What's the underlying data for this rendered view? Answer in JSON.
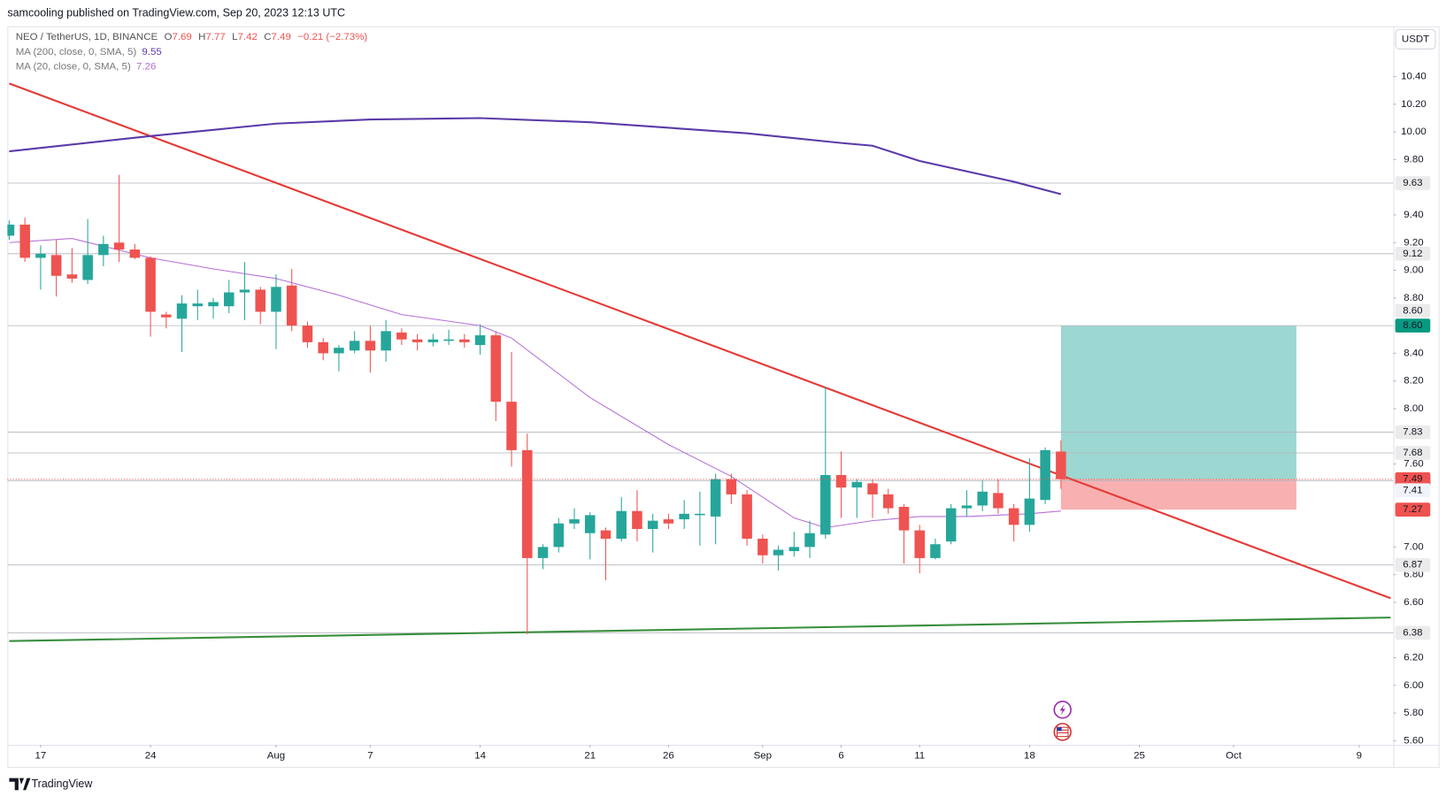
{
  "header": {
    "published": "samcooling published on TradingView.com, Sep 20, 2023 12:13 UTC"
  },
  "legend": {
    "symbol": "NEO / TetherUS, 1D, BINANCE",
    "o": "O",
    "o_value": "7.69",
    "h": "H",
    "h_value": "7.77",
    "l": "L",
    "l_value": "7.42",
    "c": "C",
    "c_value": "7.49",
    "change": "−0.21 (−2.73%)"
  },
  "currency_button": "USDT",
  "footer": "TradingView",
  "chart_data": {
    "type": "candlestick",
    "up_color": "#26a69a",
    "down_color": "#ef5350",
    "grid": false,
    "x": [
      "2023-07-15",
      "2023-07-16",
      "2023-07-17",
      "2023-07-18",
      "2023-07-19",
      "2023-07-20",
      "2023-07-21",
      "2023-07-22",
      "2023-07-23",
      "2023-07-24",
      "2023-07-25",
      "2023-07-26",
      "2023-07-27",
      "2023-07-28",
      "2023-07-29",
      "2023-07-30",
      "2023-07-31",
      "2023-08-01",
      "2023-08-02",
      "2023-08-03",
      "2023-08-04",
      "2023-08-05",
      "2023-08-06",
      "2023-08-07",
      "2023-08-08",
      "2023-08-09",
      "2023-08-10",
      "2023-08-11",
      "2023-08-12",
      "2023-08-13",
      "2023-08-14",
      "2023-08-15",
      "2023-08-16",
      "2023-08-17",
      "2023-08-18",
      "2023-08-19",
      "2023-08-20",
      "2023-08-21",
      "2023-08-22",
      "2023-08-23",
      "2023-08-24",
      "2023-08-25",
      "2023-08-26",
      "2023-08-27",
      "2023-08-28",
      "2023-08-29",
      "2023-08-30",
      "2023-08-31",
      "2023-09-01",
      "2023-09-02",
      "2023-09-03",
      "2023-09-04",
      "2023-09-05",
      "2023-09-06",
      "2023-09-07",
      "2023-09-08",
      "2023-09-09",
      "2023-09-10",
      "2023-09-11",
      "2023-09-12",
      "2023-09-13",
      "2023-09-14",
      "2023-09-15",
      "2023-09-16",
      "2023-09-17",
      "2023-09-18",
      "2023-09-19",
      "2023-09-20"
    ],
    "open": [
      9.25,
      9.33,
      9.09,
      9.11,
      8.97,
      8.93,
      9.11,
      9.2,
      9.15,
      9.09,
      8.68,
      8.65,
      8.74,
      8.74,
      8.74,
      8.84,
      8.86,
      8.7,
      8.89,
      8.6,
      8.48,
      8.4,
      8.42,
      8.49,
      8.42,
      8.55,
      8.5,
      8.48,
      8.49,
      8.5,
      8.46,
      8.53,
      8.05,
      7.7,
      6.92,
      7.0,
      7.17,
      7.1,
      7.12,
      7.06,
      7.26,
      7.13,
      7.2,
      7.2,
      7.23,
      7.22,
      7.49,
      7.38,
      7.06,
      6.94,
      6.97,
      7.0,
      7.09,
      7.52,
      7.43,
      7.46,
      7.38,
      7.29,
      7.12,
      6.92,
      7.04,
      7.28,
      7.3,
      7.39,
      7.28,
      7.16,
      7.34,
      7.69
    ],
    "high": [
      9.36,
      9.38,
      9.18,
      9.22,
      9.16,
      9.37,
      9.25,
      9.69,
      9.19,
      9.1,
      8.7,
      8.82,
      8.86,
      8.8,
      8.93,
      9.06,
      8.88,
      8.97,
      9.01,
      8.63,
      8.51,
      8.46,
      8.56,
      8.6,
      8.64,
      8.58,
      8.54,
      8.54,
      8.57,
      8.54,
      8.61,
      8.56,
      8.41,
      7.82,
      7.02,
      7.21,
      7.28,
      7.25,
      7.14,
      7.36,
      7.41,
      7.24,
      7.24,
      7.34,
      7.4,
      7.53,
      7.53,
      7.41,
      7.09,
      7.01,
      7.11,
      7.19,
      8.16,
      7.69,
      7.49,
      7.49,
      7.42,
      7.31,
      7.16,
      7.06,
      7.31,
      7.41,
      7.48,
      7.49,
      7.31,
      7.64,
      7.72,
      7.77
    ],
    "low": [
      9.22,
      9.06,
      8.86,
      8.81,
      8.91,
      8.9,
      9.03,
      9.06,
      9.08,
      8.52,
      8.58,
      8.41,
      8.64,
      8.65,
      8.69,
      8.64,
      8.61,
      8.43,
      8.56,
      8.44,
      8.35,
      8.27,
      8.4,
      8.26,
      8.34,
      8.46,
      8.42,
      8.45,
      8.46,
      8.44,
      8.39,
      7.91,
      7.58,
      6.37,
      6.84,
      6.96,
      7.13,
      6.91,
      6.76,
      7.04,
      7.04,
      6.96,
      7.13,
      7.13,
      7.01,
      7.02,
      7.31,
      7.01,
      6.88,
      6.83,
      6.93,
      6.92,
      7.06,
      7.21,
      7.21,
      7.21,
      7.24,
      6.88,
      6.81,
      6.91,
      7.02,
      7.22,
      7.26,
      7.24,
      7.04,
      7.11,
      7.31,
      7.42
    ],
    "close": [
      9.33,
      9.09,
      9.12,
      8.96,
      8.94,
      9.11,
      9.19,
      9.15,
      9.09,
      8.7,
      8.66,
      8.76,
      8.76,
      8.77,
      8.84,
      8.86,
      8.7,
      8.88,
      8.6,
      8.48,
      8.4,
      8.44,
      8.49,
      8.42,
      8.56,
      8.5,
      8.48,
      8.5,
      8.5,
      8.48,
      8.53,
      8.05,
      7.7,
      6.92,
      7.0,
      7.17,
      7.2,
      7.23,
      7.06,
      7.26,
      7.13,
      7.19,
      7.17,
      7.24,
      7.24,
      7.49,
      7.38,
      7.06,
      6.94,
      6.98,
      7.0,
      7.1,
      7.52,
      7.43,
      7.47,
      7.38,
      7.28,
      7.12,
      6.92,
      7.02,
      7.28,
      7.3,
      7.4,
      7.28,
      7.16,
      7.35,
      7.7,
      7.49
    ],
    "ma": [
      {
        "name": "MA (200, close, 0, SMA, 5)",
        "last_value": 9.55,
        "color": "#5b3aa8",
        "width": 2,
        "x": [
          "2023-07-15",
          "2023-07-24",
          "2023-08-01",
          "2023-08-07",
          "2023-08-14",
          "2023-08-21",
          "2023-08-31",
          "2023-09-06",
          "2023-09-08",
          "2023-09-11",
          "2023-09-17",
          "2023-09-20"
        ],
        "values": [
          9.86,
          9.97,
          10.06,
          10.09,
          10.1,
          10.07,
          9.99,
          9.92,
          9.9,
          9.79,
          9.64,
          9.55
        ]
      },
      {
        "name": "MA (20, close, 0, SMA, 5)",
        "last_value": 7.26,
        "color": "#b56fd6",
        "width": 1,
        "x": [
          "2023-07-15",
          "2023-07-19",
          "2023-07-24",
          "2023-07-28",
          "2023-08-01",
          "2023-08-05",
          "2023-08-09",
          "2023-08-14",
          "2023-08-16",
          "2023-08-21",
          "2023-08-26",
          "2023-08-30",
          "2023-09-03",
          "2023-09-05",
          "2023-09-08",
          "2023-09-11",
          "2023-09-14",
          "2023-09-18",
          "2023-09-20"
        ],
        "values": [
          9.2,
          9.23,
          9.09,
          9.01,
          8.94,
          8.82,
          8.68,
          8.6,
          8.51,
          8.08,
          7.74,
          7.51,
          7.21,
          7.14,
          7.19,
          7.22,
          7.22,
          7.24,
          7.26
        ]
      }
    ],
    "trendlines": [
      {
        "color": "#e53935",
        "x": [
          "2023-07-15",
          "2023-10-11"
        ],
        "values": [
          10.35,
          6.63
        ]
      },
      {
        "color": "#388e3c",
        "x": [
          "2023-07-15",
          "2023-10-11"
        ],
        "values": [
          6.32,
          6.49
        ]
      }
    ],
    "levels": [
      {
        "value": 9.63,
        "color": "#ebebeb"
      },
      {
        "value": 9.12,
        "color": "#ebebeb"
      },
      {
        "value": 8.6,
        "label": "8.60",
        "color": "#ebebeb"
      },
      {
        "value": 7.83,
        "color": "#ebebeb"
      },
      {
        "value": 7.68,
        "color": "#ebebeb"
      },
      {
        "value": 7.48,
        "color": "#5d606b"
      },
      {
        "value": 6.87,
        "color": "#ebebeb"
      },
      {
        "value": 6.38,
        "color": "#ebebeb"
      }
    ],
    "position": {
      "x": [
        "2023-09-20",
        "2023-10-05"
      ],
      "entry": 7.49,
      "target": 8.6,
      "stop": 7.27,
      "target_color": "rgba(38,166,154,0.45)",
      "stop_color": "rgba(239,83,80,0.45)"
    },
    "price_labels": [
      {
        "value": 8.6,
        "label": "8.60",
        "color": "#089981"
      },
      {
        "value": 7.49,
        "color": "#ef5350",
        "dotted": true
      },
      {
        "value": 7.41,
        "color": "#f0f3fa"
      },
      {
        "value": 7.27,
        "color": "#ef5350"
      }
    ],
    "xlim": [
      "2023-07-15",
      "2023-10-11"
    ],
    "xticks": [
      {
        "value": "2023-07-17",
        "label": "17"
      },
      {
        "value": "2023-07-24",
        "label": "24"
      },
      {
        "value": "2023-08-01",
        "label": "Aug"
      },
      {
        "value": "2023-08-07",
        "label": "7"
      },
      {
        "value": "2023-08-14",
        "label": "14"
      },
      {
        "value": "2023-08-21",
        "label": "21"
      },
      {
        "value": "2023-08-26",
        "label": "26"
      },
      {
        "value": "2023-09-01",
        "label": "Sep"
      },
      {
        "value": "2023-09-06",
        "label": "6"
      },
      {
        "value": "2023-09-11",
        "label": "11"
      },
      {
        "value": "2023-09-18",
        "label": "18"
      },
      {
        "value": "2023-09-25",
        "label": "25"
      },
      {
        "value": "2023-10-01",
        "label": "Oct"
      },
      {
        "value": "2023-10-09",
        "label": "9"
      }
    ],
    "ylim": [
      5.57,
      10.75
    ],
    "yticks": [
      {
        "value": 10.4,
        "label": "10.40"
      },
      {
        "value": 10.2,
        "label": "10.20"
      },
      {
        "value": 10,
        "label": "10.00"
      },
      {
        "value": 9.8,
        "label": "9.80"
      },
      {
        "value": 9.4,
        "label": "9.40"
      },
      {
        "value": 9.2,
        "label": "9.20"
      },
      {
        "value": 9,
        "label": "9.00"
      },
      {
        "value": 8.8,
        "label": "8.80"
      },
      {
        "value": 8.4,
        "label": "8.40"
      },
      {
        "value": 8.2,
        "label": "8.20"
      },
      {
        "value": 8,
        "label": "8.00"
      },
      {
        "value": 7.6,
        "label": "7.60"
      },
      {
        "value": 7,
        "label": "7.00"
      },
      {
        "value": 6.8,
        "label": "6.80"
      },
      {
        "value": 6.6,
        "label": "6.60"
      },
      {
        "value": 6.2,
        "label": "6.20"
      },
      {
        "value": 6,
        "label": "6.00"
      },
      {
        "value": 5.8,
        "label": "5.80"
      },
      {
        "value": 5.6,
        "label": "5.60"
      }
    ]
  }
}
